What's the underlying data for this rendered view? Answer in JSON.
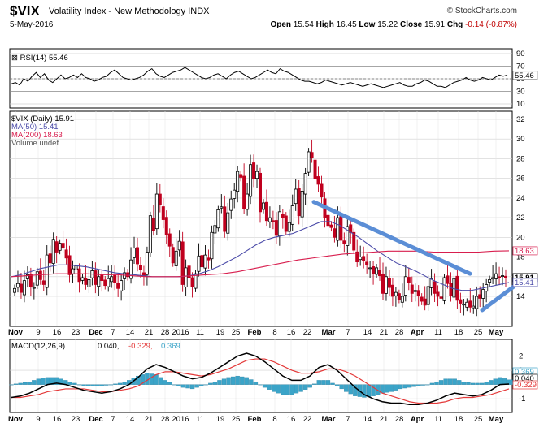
{
  "header": {
    "symbol": "$VIX",
    "name": "Volatility Index - New Methodology INDX",
    "date": "5-May-2016",
    "brand": "© StockCharts.com",
    "open_label": "Open",
    "open": "15.54",
    "high_label": "High",
    "high": "16.45",
    "low_label": "Low",
    "low": "15.22",
    "close_label": "Close",
    "close": "15.91",
    "chg_label": "Chg",
    "chg": "-0.14 (-0.87%)"
  },
  "colors": {
    "up": "#000000",
    "down": "#c0001e",
    "ma50": "#4a4aa8",
    "ma200": "#d81e4e",
    "rsi": "#000000",
    "macd": "#000000",
    "signal": "#e43a3a",
    "hist": "#3ba4c8",
    "trend": "#5b8ed6",
    "grid": "#d0d0d0"
  },
  "chart_data": [
    {
      "type": "line",
      "panel": "rsi",
      "legend": "RSI(14) 55.46",
      "y_ticks": [
        "90",
        "70",
        "50",
        "30",
        "10"
      ],
      "ylim": [
        10,
        90
      ],
      "last_value_label": "55.46",
      "values": [
        42,
        44,
        40,
        50,
        46,
        54,
        60,
        52,
        58,
        48,
        44,
        50,
        56,
        50,
        52,
        56,
        52,
        58,
        52,
        50,
        46,
        48,
        52,
        54,
        60,
        64,
        58,
        52,
        50,
        48,
        50,
        52,
        56,
        62,
        66,
        58,
        54,
        52,
        56,
        60,
        62,
        64,
        68,
        64,
        60,
        56,
        52,
        50,
        52,
        56,
        58,
        54,
        50,
        56,
        60,
        62,
        58,
        54,
        50,
        52,
        56,
        60,
        64,
        60,
        58,
        66,
        62,
        60,
        56,
        52,
        48,
        46,
        46,
        44,
        42,
        44,
        48,
        46,
        44,
        42,
        40,
        42,
        44,
        42,
        40,
        38,
        40,
        42,
        40,
        38,
        36,
        38,
        40,
        42,
        44,
        40,
        38,
        38,
        42,
        44,
        48,
        46,
        42,
        38,
        38,
        36,
        40,
        44,
        46,
        48,
        52,
        48,
        46,
        48,
        52,
        50,
        48,
        52,
        56,
        54,
        56
      ]
    },
    {
      "type": "candlestick",
      "panel": "price",
      "legend": [
        "$VIX (Daily) 15.91",
        "MA(50) 15.41",
        "MA(200) 18.63",
        "Volume undef"
      ],
      "y_ticks": [
        "32",
        "30",
        "28",
        "26",
        "24",
        "22",
        "20",
        "18",
        "16",
        "14"
      ],
      "ylim": [
        12,
        33
      ],
      "x_labels": [
        "Nov",
        "9",
        "16",
        "23",
        "Dec",
        "7",
        "14",
        "21",
        "28",
        "2016",
        "11",
        "19",
        "25",
        "Feb",
        "8",
        "16",
        "22",
        "Mar",
        "7",
        "14",
        "21",
        "28",
        "Apr",
        "11",
        "18",
        "25",
        "May"
      ],
      "price_tags": [
        "18.63",
        "15.91",
        "15.41"
      ],
      "closes": [
        14.8,
        15.3,
        14.4,
        15.6,
        16.2,
        15.0,
        14.9,
        16.5,
        15.7,
        15.2,
        18.2,
        17.4,
        19.8,
        18.5,
        19.4,
        18.9,
        17.9,
        16.2,
        16.8,
        17.1,
        15.5,
        15.9,
        15.2,
        15.7,
        16.6,
        15.2,
        16.0,
        15.6,
        15.1,
        15.8,
        16.0,
        15.4,
        14.8,
        15.6,
        16.4,
        16.0,
        17.7,
        18.9,
        17.3,
        16.7,
        16.1,
        18.5,
        22.2,
        20.7,
        24.4,
        23.3,
        21.8,
        20.3,
        19.1,
        17.4,
        18.6,
        19.6,
        15.2,
        16.9,
        15.9,
        15.0,
        16.3,
        18.1,
        17.0,
        18.2,
        17.7,
        20.5,
        21.2,
        22.8,
        23.1,
        20.6,
        22.5,
        23.9,
        24.8,
        26.7,
        26.1,
        22.9,
        24.4,
        27.4,
        26.0,
        26.7,
        22.6,
        23.5,
        21.7,
        22.0,
        21.6,
        20.2,
        22.6,
        22.0,
        20.6,
        21.5,
        23.2,
        24.9,
        22.2,
        24.7,
        26.5,
        28.7,
        28.1,
        26.0,
        25.4,
        24.1,
        22.0,
        21.2,
        21.0,
        20.0,
        22.0,
        19.7,
        19.4,
        21.1,
        20.5,
        18.7,
        17.5,
        18.0,
        17.6,
        17.2,
        16.9,
        16.3,
        16.9,
        16.1,
        14.3,
        16.0,
        14.9,
        14.0,
        14.4,
        13.7,
        14.0,
        16.0,
        15.4,
        14.3,
        14.6,
        14.1,
        13.5,
        13.1,
        15.0,
        15.8,
        14.3,
        14.0,
        13.8,
        15.9,
        15.3,
        14.1,
        15.8,
        13.6,
        13.3,
        13.2,
        13.4,
        12.9,
        13.0,
        14.0,
        13.8,
        14.7,
        15.2,
        15.7,
        15.9,
        16.3,
        15.9,
        16.1,
        15.91
      ],
      "ma50": [
        16.0,
        16.2,
        16.5,
        16.8,
        17.0,
        17.2,
        17.2,
        17.1,
        17.0,
        16.8,
        16.6,
        16.4,
        16.3,
        16.2,
        16.1,
        16.0,
        16.0,
        16.0,
        16.0,
        16.1,
        16.3,
        16.6,
        17.0,
        17.5,
        18.0,
        18.6,
        19.2,
        19.7,
        20.0,
        20.2,
        20.4,
        20.8,
        21.2,
        21.6,
        21.6,
        21.2,
        20.6,
        20.0,
        19.3,
        18.6,
        18.0,
        17.4,
        17.0,
        16.6,
        16.1,
        15.6,
        15.2,
        14.8,
        14.6,
        14.6,
        14.8,
        15.0,
        15.2,
        15.41
      ],
      "ma200": [
        16.0,
        16.1,
        16.2,
        16.3,
        16.3,
        16.3,
        16.2,
        16.2,
        16.1,
        16.0,
        16.0,
        16.0,
        16.1,
        16.2,
        16.3,
        16.5,
        16.8,
        17.1,
        17.4,
        17.7,
        17.9,
        18.1,
        18.3,
        18.4,
        18.5,
        18.6,
        18.6,
        18.6,
        18.5,
        18.5,
        18.5,
        18.5,
        18.6,
        18.63
      ],
      "trendlines": [
        {
          "from": {
            "date": "Feb 22",
            "value": 23.6
          },
          "to": {
            "date": "Apr 21",
            "value": 16.3
          }
        },
        {
          "from": {
            "date": "Apr 25",
            "value": 12.6
          },
          "to": {
            "date": "May 6",
            "value": 15.0
          }
        }
      ]
    },
    {
      "type": "line",
      "panel": "macd",
      "legend": [
        "MACD(12,26,9)",
        "0.040,",
        "-0.329,",
        "0.369"
      ],
      "y_ticks": [
        "2",
        "1",
        "0",
        "-1"
      ],
      "ylim": [
        -1.5,
        2.6
      ],
      "price_tags": [
        "0.369",
        "0.040",
        "-0.329"
      ],
      "x_labels": [
        "Nov",
        "9",
        "16",
        "23",
        "Dec",
        "7",
        "14",
        "21",
        "28",
        "2016",
        "11",
        "19",
        "25",
        "Feb",
        "8",
        "16",
        "22",
        "Mar",
        "7",
        "14",
        "21",
        "28",
        "Apr",
        "11",
        "18",
        "25",
        "May"
      ],
      "macd": [
        -0.9,
        -0.8,
        -0.6,
        -0.3,
        0.0,
        0.1,
        0.0,
        -0.2,
        -0.4,
        -0.5,
        -0.6,
        -0.5,
        -0.3,
        0.0,
        0.5,
        1.1,
        1.4,
        1.2,
        0.9,
        0.6,
        0.4,
        0.5,
        0.8,
        1.2,
        1.6,
        2.0,
        2.2,
        2.0,
        1.6,
        1.1,
        0.6,
        0.3,
        0.3,
        0.6,
        1.2,
        1.4,
        1.0,
        0.4,
        -0.2,
        -0.7,
        -1.0,
        -1.2,
        -1.3,
        -1.3,
        -1.4,
        -1.4,
        -1.3,
        -1.1,
        -0.8,
        -0.6,
        -0.7,
        -0.8,
        -0.7,
        -0.4,
        0.0,
        0.04
      ],
      "signal": [
        -0.9,
        -0.9,
        -0.8,
        -0.7,
        -0.5,
        -0.4,
        -0.3,
        -0.3,
        -0.3,
        -0.4,
        -0.5,
        -0.5,
        -0.4,
        -0.3,
        -0.1,
        0.3,
        0.7,
        0.9,
        0.9,
        0.8,
        0.7,
        0.6,
        0.7,
        0.9,
        1.1,
        1.4,
        1.7,
        1.8,
        1.8,
        1.6,
        1.3,
        1.0,
        0.8,
        0.8,
        0.9,
        1.1,
        1.1,
        0.9,
        0.6,
        0.2,
        -0.2,
        -0.6,
        -0.8,
        -1.0,
        -1.2,
        -1.3,
        -1.3,
        -1.3,
        -1.2,
        -1.0,
        -0.9,
        -0.9,
        -0.8,
        -0.7,
        -0.5,
        -0.3
      ]
    }
  ]
}
